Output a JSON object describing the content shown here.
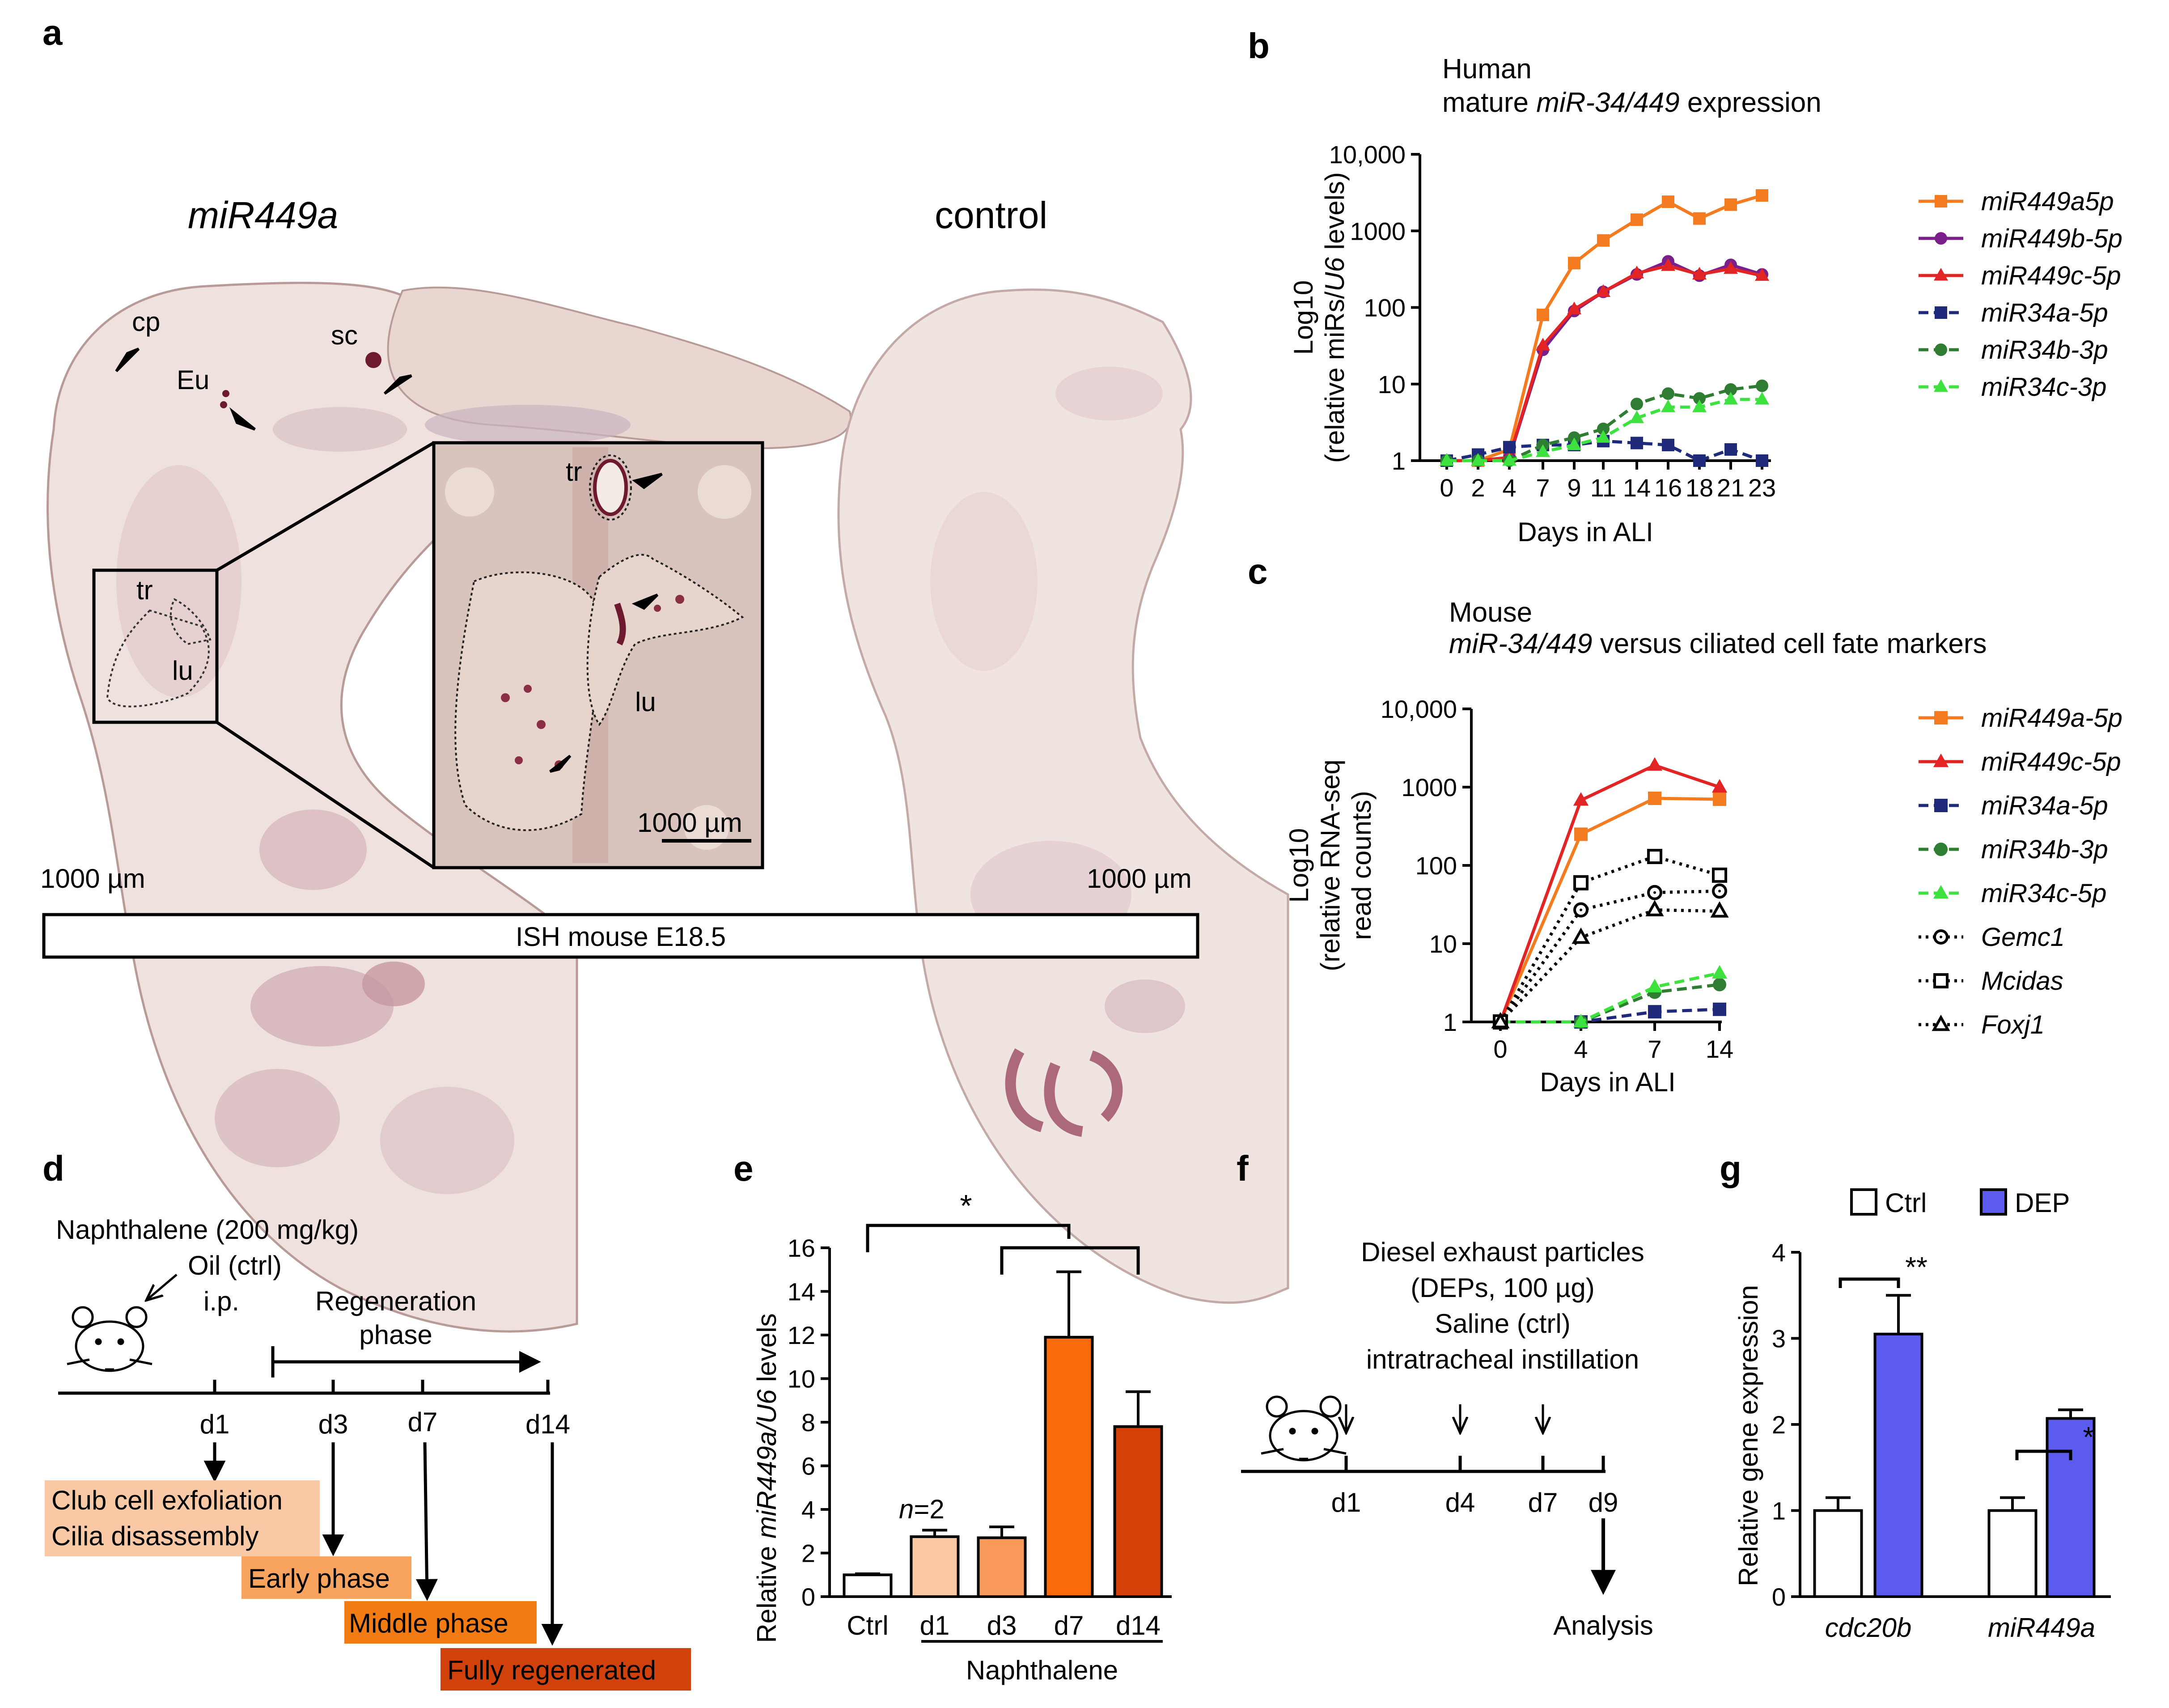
{
  "panels": {
    "a": {
      "letter": "a",
      "title_left": "miR449a",
      "title_right": "control",
      "labels": {
        "cp": "cp",
        "sc": "sc",
        "eu": "Eu",
        "tr": "tr",
        "lu": "lu"
      },
      "scale_left": "1000 µm",
      "scale_right": "1000 µm",
      "inset_scale": "1000 µm",
      "footer": "ISH mouse E18.5"
    },
    "b": {
      "letter": "b",
      "title_line1": "Human",
      "title_line2_pre": "mature ",
      "title_line2_ital": "miR-34/449",
      "title_line2_post": " expression",
      "ylabel_line1": "Log10",
      "ylabel_line2_pre": "(relative miRs/",
      "ylabel_line2_ital": "U6",
      "ylabel_line2_post": " levels)",
      "xlabel": "Days in ALI",
      "yticks": [
        "1",
        "10",
        "100",
        "1000",
        "10,000"
      ],
      "xticks": [
        "0",
        "2",
        "4",
        "7",
        "9",
        "11",
        "14",
        "16",
        "18",
        "21",
        "23"
      ]
    },
    "c": {
      "letter": "c",
      "title_line1": "Mouse",
      "title_line2_ital": "miR-34/449",
      "title_line2_post": " versus ciliated cell fate markers",
      "ylabel_line1": "Log10",
      "ylabel_line2": "(relative RNA-seq",
      "ylabel_line3": "read counts)",
      "xlabel": "Days in ALI",
      "yticks": [
        "1",
        "10",
        "100",
        "1000",
        "10,000"
      ],
      "xticks": [
        "0",
        "4",
        "7",
        "14"
      ]
    },
    "d": {
      "letter": "d",
      "line1": "Naphthalene (200 mg/kg)",
      "line2": "Oil (ctrl)",
      "line3": "i.p.",
      "regen1": "Regeneration",
      "regen2": "phase",
      "days": [
        "d1",
        "d3",
        "d7",
        "d14"
      ],
      "box1a": "Club cell exfoliation",
      "box1b": "Cilia disassembly",
      "box2": "Early phase",
      "box3": "Middle phase",
      "box4": "Fully regenerated"
    },
    "e": {
      "letter": "e",
      "ylabel_pre": "Relative ",
      "ylabel_ital": "miR449a/U6",
      "ylabel_post": " levels",
      "yticks": [
        "0",
        "2",
        "4",
        "6",
        "8",
        "10",
        "12",
        "14",
        "16"
      ],
      "n_label_ital": "n",
      "n_label_post": "=2",
      "star": "*",
      "group_label": "Naphthalene"
    },
    "f": {
      "letter": "f",
      "line1": "Diesel exhaust particles",
      "line2": "(DEPs, 100 µg)",
      "line3": "Saline (ctrl)",
      "line4": "intratracheal instillation",
      "days": [
        "d1",
        "d4",
        "d7",
        "d9"
      ],
      "analysis": "Analysis"
    },
    "g": {
      "letter": "g",
      "ylabel": "Relative gene expression",
      "yticks": [
        "0",
        "1",
        "2",
        "3",
        "4"
      ],
      "legend_ctrl": "Ctrl",
      "legend_dep": "DEP",
      "star_cdc": "**",
      "star_mir": "*"
    }
  },
  "chart_data": [
    {
      "id": "b",
      "type": "line",
      "title": "Human mature miR-34/449 expression",
      "xlabel": "Days in ALI",
      "ylabel": "Log10 (relative miRs/U6 levels)",
      "yscale": "log",
      "ylim": [
        1,
        10000
      ],
      "xlim": [
        0,
        23
      ],
      "x": [
        0,
        2,
        4,
        7,
        9,
        11,
        14,
        16,
        18,
        21,
        23
      ],
      "series": [
        {
          "name": "miR449a5p",
          "color": "#f47b20",
          "marker": "square",
          "dash": "solid",
          "values": [
            1,
            1,
            1.4,
            80,
            380,
            750,
            1400,
            2400,
            1450,
            2200,
            2900
          ]
        },
        {
          "name": "miR449b-5p",
          "color": "#7b1f8a",
          "marker": "circle",
          "dash": "solid",
          "values": [
            1,
            1,
            1.1,
            28,
            90,
            160,
            270,
            400,
            260,
            360,
            270
          ]
        },
        {
          "name": "miR449c-5p",
          "color": "#e32424",
          "marker": "triangle",
          "dash": "solid",
          "values": [
            1,
            1,
            1.1,
            32,
            95,
            160,
            280,
            350,
            270,
            320,
            260
          ]
        },
        {
          "name": "miR34a-5p",
          "color": "#1f2a7a",
          "marker": "square",
          "dash": "dashed",
          "values": [
            1,
            1.2,
            1.5,
            1.6,
            1.6,
            1.8,
            1.7,
            1.6,
            1,
            1.4,
            1
          ]
        },
        {
          "name": "miR34b-3p",
          "color": "#2e7d32",
          "marker": "circle",
          "dash": "dashed",
          "values": [
            1,
            1,
            1,
            1.6,
            2,
            2.6,
            5.5,
            7.5,
            6.5,
            8.5,
            9.5
          ]
        },
        {
          "name": "miR34c-3p",
          "color": "#3ee23e",
          "marker": "triangle",
          "dash": "dashed",
          "values": [
            1,
            1,
            1,
            1.3,
            1.6,
            2,
            3.6,
            5,
            5,
            6.3,
            6.3
          ]
        }
      ]
    },
    {
      "id": "c",
      "type": "line",
      "title": "Mouse miR-34/449 versus ciliated cell fate markers",
      "xlabel": "Days in ALI",
      "ylabel": "Log10 (relative RNA-seq read counts)",
      "yscale": "log",
      "ylim": [
        1,
        10000
      ],
      "x": [
        0,
        4,
        7,
        14
      ],
      "series": [
        {
          "name": "miR449a-5p",
          "color": "#f47b20",
          "marker": "square",
          "dash": "solid",
          "values": [
            1,
            250,
            720,
            700
          ]
        },
        {
          "name": "miR449c-5p",
          "color": "#e32424",
          "marker": "triangle",
          "dash": "solid",
          "values": [
            1,
            680,
            1900,
            1000
          ]
        },
        {
          "name": "miR34a-5p",
          "color": "#1f2a7a",
          "marker": "square",
          "dash": "dashed",
          "values": [
            1,
            1,
            1.35,
            1.45
          ]
        },
        {
          "name": "miR34b-3p",
          "color": "#2e7d32",
          "marker": "circle",
          "dash": "dashed",
          "values": [
            1,
            1,
            2.4,
            3
          ]
        },
        {
          "name": "miR34c-5p",
          "color": "#3ee23e",
          "marker": "triangle",
          "dash": "dashed",
          "values": [
            1,
            1,
            2.8,
            4.2
          ]
        },
        {
          "name": "Gemc1",
          "color": "#000000",
          "marker": "circle-open",
          "dash": "dotted",
          "values": [
            1,
            27,
            45,
            47
          ]
        },
        {
          "name": "Mcidas",
          "color": "#000000",
          "marker": "square-open",
          "dash": "dotted",
          "values": [
            1,
            60,
            130,
            75
          ]
        },
        {
          "name": "Foxj1",
          "color": "#000000",
          "marker": "triangle-open",
          "dash": "dotted",
          "values": [
            1,
            12,
            27,
            26
          ]
        }
      ]
    },
    {
      "id": "e",
      "type": "bar",
      "ylabel": "Relative miR449a/U6 levels",
      "ylim": [
        0,
        16
      ],
      "categories": [
        "Ctrl",
        "d1",
        "d3",
        "d7",
        "d14"
      ],
      "values": [
        1,
        2.75,
        2.7,
        11.9,
        7.8
      ],
      "errors": [
        0.05,
        0.3,
        0.5,
        3.0,
        1.6
      ],
      "colors": [
        "#ffffff",
        "#fcc8a2",
        "#f99a5a",
        "#f86a0c",
        "#d34108"
      ],
      "group_label": "Naphthalene"
    },
    {
      "id": "g",
      "type": "bar",
      "ylabel": "Relative gene expression",
      "ylim": [
        0,
        4
      ],
      "categories": [
        "cdc20b",
        "miR449a"
      ],
      "series": [
        {
          "name": "Ctrl",
          "color": "#ffffff",
          "values": [
            1.0,
            1.0
          ],
          "errors": [
            0.15,
            0.15
          ]
        },
        {
          "name": "DEP",
          "color": "#5b5bf0",
          "values": [
            3.05,
            2.07
          ],
          "errors": [
            0.45,
            0.1
          ]
        }
      ]
    }
  ]
}
